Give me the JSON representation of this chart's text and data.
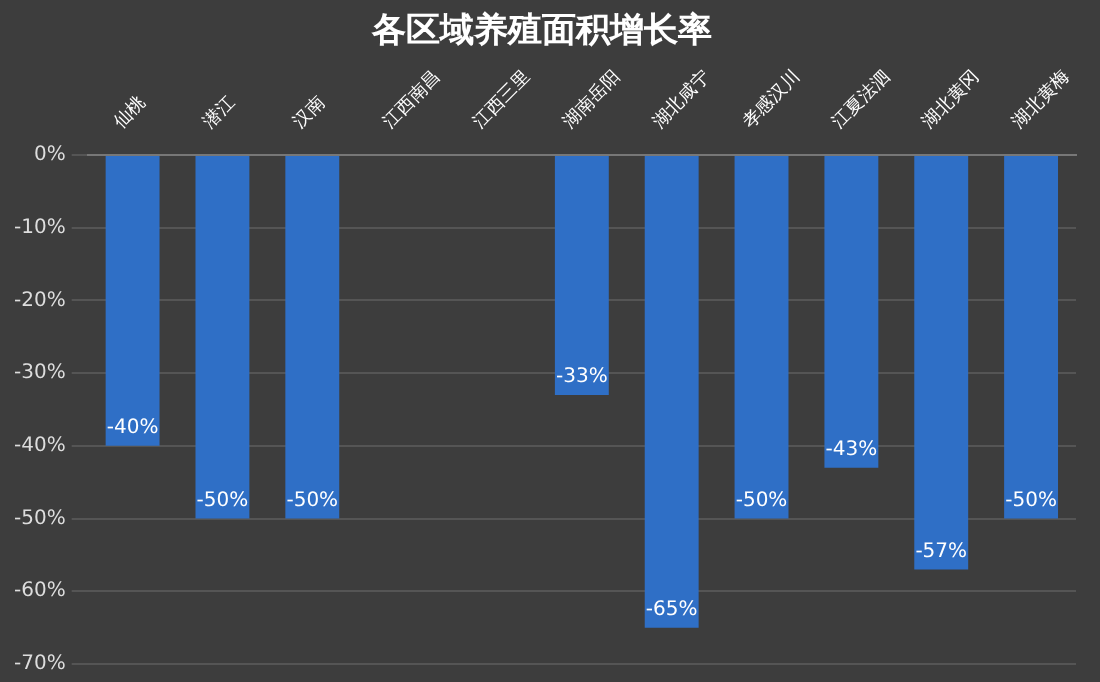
{
  "chart_data": {
    "type": "bar",
    "title": "各区域养殖面积增长率",
    "categories": [
      "仙桃",
      "潜江",
      "汉南",
      "江西南昌",
      "江西三里",
      "湖南岳阳",
      "湖北咸宁",
      "孝感汉川",
      "江夏法泗",
      "湖北黄冈",
      "湖北黄梅"
    ],
    "values": [
      -40,
      -50,
      -50,
      null,
      null,
      -33,
      -65,
      -50,
      -43,
      -57,
      -50
    ],
    "color": "#2f6fc6",
    "ylim": [
      -70,
      0
    ],
    "yticks": [
      {
        "value": 0,
        "label": "0%"
      },
      {
        "value": -10,
        "label": "-10%"
      },
      {
        "value": -20,
        "label": "-20%"
      },
      {
        "value": -30,
        "label": "-30%"
      },
      {
        "value": -40,
        "label": "-40%"
      },
      {
        "value": -50,
        "label": "-50%"
      },
      {
        "value": -60,
        "label": "-60%"
      },
      {
        "value": -70,
        "label": "-70%"
      }
    ],
    "value_labels": [
      "-40%",
      "-50%",
      "-50%",
      null,
      null,
      "-33%",
      "-65%",
      "-50%",
      "-43%",
      "-57%",
      "-50%"
    ],
    "grid": "y",
    "legend": false
  }
}
